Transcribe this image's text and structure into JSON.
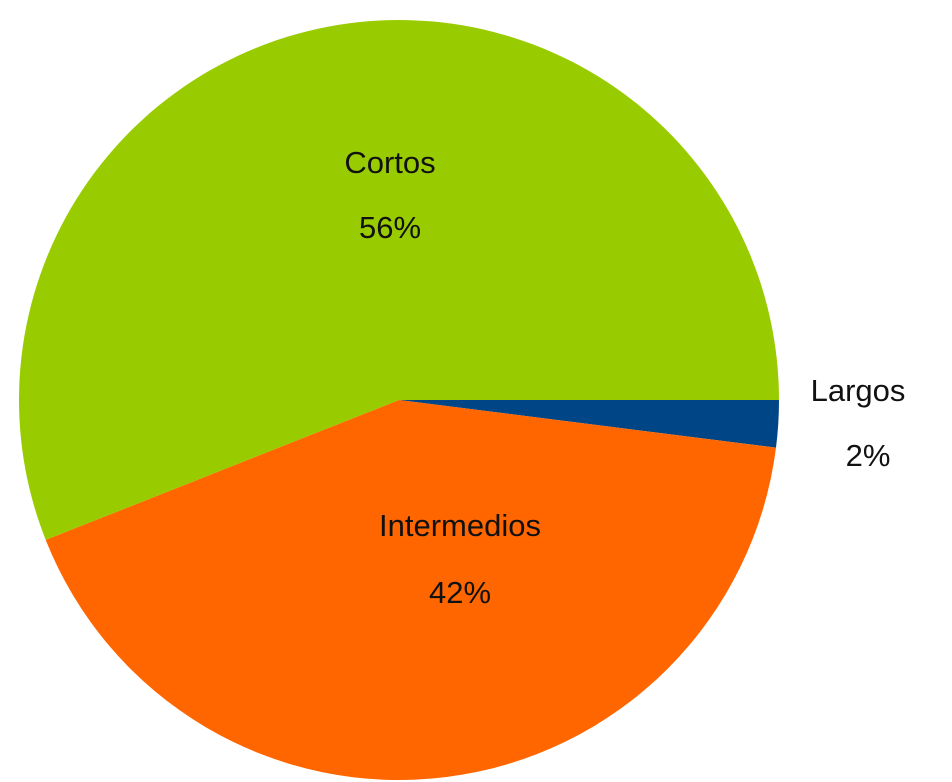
{
  "chart_data": {
    "type": "pie",
    "categories": [
      "Largos",
      "Intermedios",
      "Cortos"
    ],
    "values": [
      2,
      42,
      56
    ],
    "value_labels": [
      "2%",
      "42%",
      "56%"
    ],
    "colors": [
      "#004586",
      "#ff6600",
      "#99cc00"
    ]
  }
}
